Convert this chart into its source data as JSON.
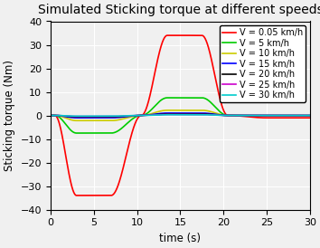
{
  "title": "Simulated Sticking torque at different speeds",
  "xlabel": "time (s)",
  "ylabel": "Sticking torque (Nm)",
  "xlim": [
    0,
    30
  ],
  "ylim": [
    -40,
    40
  ],
  "xticks": [
    0,
    5,
    10,
    15,
    20,
    25,
    30
  ],
  "yticks": [
    -40,
    -30,
    -20,
    -10,
    0,
    10,
    20,
    30,
    40
  ],
  "series": [
    {
      "label": "V = 0.05 km/h",
      "color": "#ff0000",
      "amp": 34.0
    },
    {
      "label": "V = 5 km/h",
      "color": "#00cc00",
      "amp": 7.5
    },
    {
      "label": "V = 10 km/h",
      "color": "#cccc00",
      "amp": 2.2
    },
    {
      "label": "V = 15 km/h",
      "color": "#0000ff",
      "amp": 1.0
    },
    {
      "label": "V = 20 km/h",
      "color": "#000000",
      "amp": 0.6
    },
    {
      "label": "V = 25 km/h",
      "color": "#cc00cc",
      "amp": 0.4
    },
    {
      "label": "V = 30 km/h",
      "color": "#00cccc",
      "amp": 0.3
    }
  ],
  "title_fontsize": 10,
  "legend_fontsize": 7.0,
  "axis_fontsize": 8.5,
  "tick_fontsize": 8,
  "linewidth": 1.2,
  "background_color": "#f0f0f0"
}
